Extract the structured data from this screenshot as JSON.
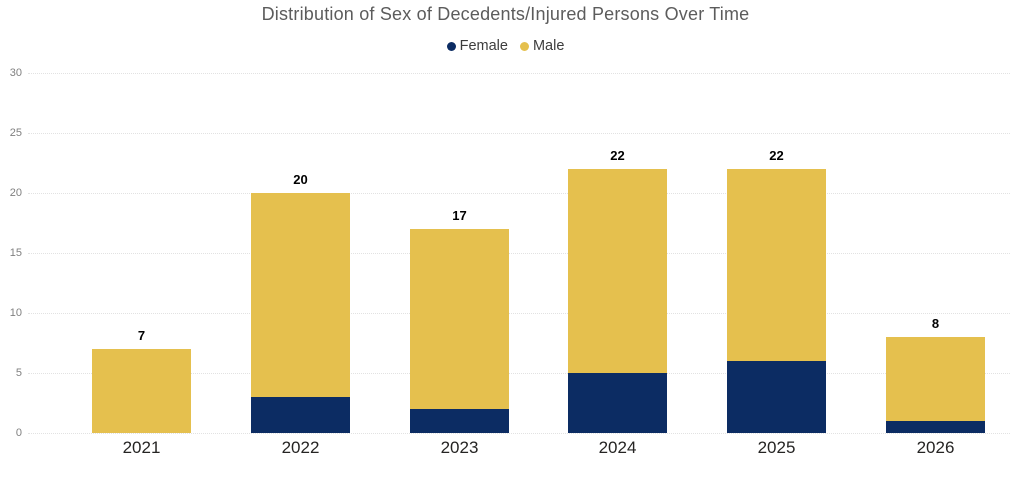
{
  "chart_data": {
    "type": "bar",
    "stacked": true,
    "title": "Distribution of Sex of Decedents/Injured Persons Over Time",
    "categories": [
      "2021",
      "2022",
      "2023",
      "2024",
      "2025",
      "2026"
    ],
    "series": [
      {
        "name": "Female",
        "color": "#0C2C63",
        "values": [
          0,
          3,
          2,
          5,
          6,
          1
        ]
      },
      {
        "name": "Male",
        "color": "#E5C04E",
        "values": [
          7,
          17,
          15,
          17,
          16,
          7
        ]
      }
    ],
    "totals": [
      7,
      20,
      17,
      22,
      22,
      8
    ],
    "total_labels": [
      "7",
      "20",
      "17",
      "22",
      "22",
      "8"
    ],
    "xlabel": "",
    "ylabel": "",
    "yticks": [
      0,
      5,
      10,
      15,
      20,
      25,
      30
    ],
    "ylim": [
      0,
      30
    ],
    "grid": "horizontal-dotted",
    "legend_position": "top-center",
    "colors": {
      "grid": "#E2E2E2",
      "title_text": "#5C5C5C",
      "axis_tick_text": "#808080",
      "category_text": "#252423",
      "data_label_text": "#000000",
      "background": "#FFFFFF"
    }
  }
}
